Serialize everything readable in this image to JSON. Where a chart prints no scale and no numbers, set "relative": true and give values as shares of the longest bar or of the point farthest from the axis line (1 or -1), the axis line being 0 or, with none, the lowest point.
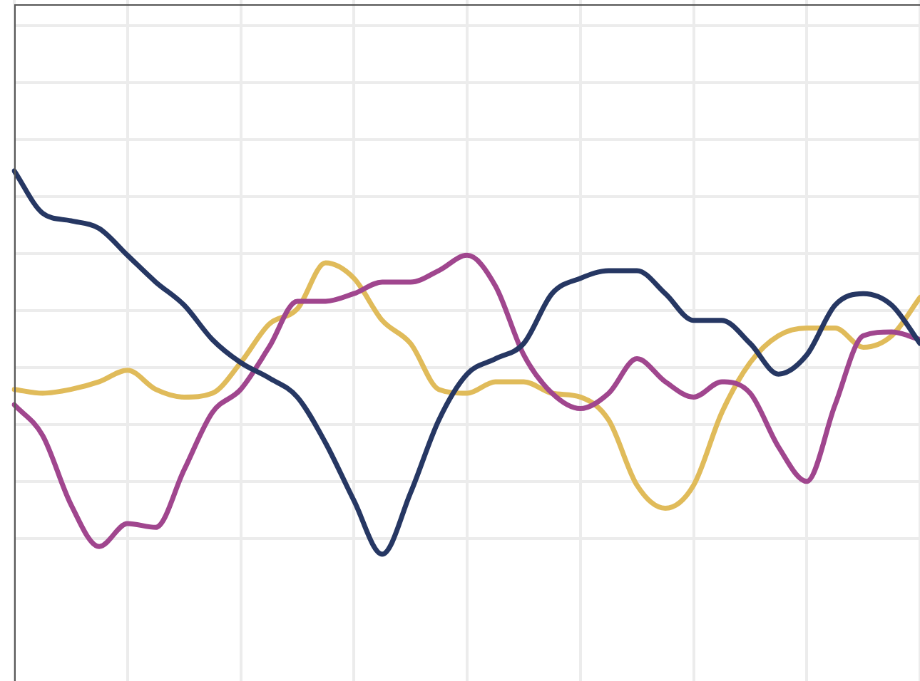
{
  "chart_data": {
    "type": "line",
    "relative": true,
    "grid": true,
    "legend": false,
    "marker": "none",
    "line_style": "solid",
    "categories": [
      null,
      null,
      null,
      null,
      null,
      null,
      null,
      null,
      null,
      null,
      null,
      null,
      null,
      null,
      null,
      null,
      null,
      null,
      null,
      null,
      null,
      null,
      null,
      null,
      null,
      null,
      null,
      null,
      null,
      null,
      null,
      null,
      null
    ],
    "series": [
      {
        "color": "#263763",
        "values": [
          1.0,
          0.89,
          0.87,
          0.85,
          0.78,
          0.71,
          0.65,
          0.56,
          0.5,
          0.46,
          0.41,
          0.29,
          0.14,
          0.0,
          0.16,
          0.35,
          0.47,
          0.51,
          0.55,
          0.68,
          0.72,
          0.74,
          0.74,
          0.68,
          0.61,
          0.61,
          0.55,
          0.47,
          0.52,
          0.65,
          0.68,
          0.65,
          0.55
        ]
      },
      {
        "color": "#a0468e",
        "values": [
          0.39,
          0.31,
          0.13,
          0.02,
          0.08,
          0.07,
          0.22,
          0.37,
          0.43,
          0.54,
          0.66,
          0.66,
          0.68,
          0.71,
          0.71,
          0.74,
          0.78,
          0.7,
          0.52,
          0.42,
          0.38,
          0.42,
          0.51,
          0.45,
          0.41,
          0.45,
          0.42,
          0.28,
          0.19,
          0.39,
          0.57,
          0.58,
          0.56
        ]
      },
      {
        "color": "#e0bb5a",
        "values": [
          0.43,
          0.42,
          0.43,
          0.45,
          0.48,
          0.43,
          0.41,
          0.42,
          0.5,
          0.6,
          0.64,
          0.76,
          0.72,
          0.61,
          0.55,
          0.43,
          0.42,
          0.45,
          0.45,
          0.42,
          0.41,
          0.35,
          0.18,
          0.12,
          0.18,
          0.37,
          0.5,
          0.57,
          0.59,
          0.59,
          0.54,
          0.57,
          0.67
        ]
      }
    ]
  }
}
